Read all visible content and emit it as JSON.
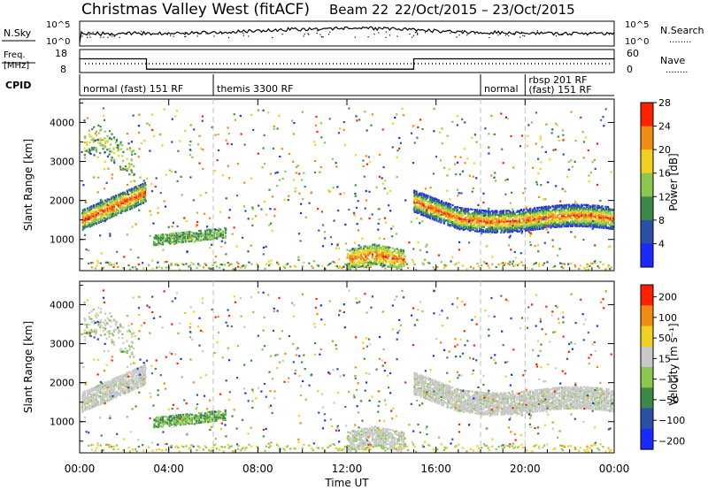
{
  "title": {
    "main": "Christmas Valley West (fitACF)",
    "beam": "Beam 22",
    "date_range": "22/Oct/2015 – 23/Oct/2015"
  },
  "noise_panel": {
    "left_label": "N.Sky",
    "right_label": "N.Search",
    "right_legend": "........",
    "left_ticks": [
      "10^5",
      "10^0"
    ],
    "right_ticks": [
      "10^5",
      "10^0"
    ]
  },
  "freq_panel": {
    "left_label_1": "Freq.",
    "left_label_2": "[MHz]",
    "left_ticks": [
      "18",
      "8"
    ],
    "right_ticks": [
      "60",
      "0"
    ],
    "right_label": "Nave",
    "right_legend": "........",
    "freq_steps": [
      {
        "t": 0.0,
        "mhz": 15.5
      },
      {
        "t": 3.0,
        "mhz": 11.0
      },
      {
        "t": 15.0,
        "mhz": 15.5
      },
      {
        "t": 24.0,
        "mhz": 15.5
      }
    ]
  },
  "cpid": {
    "label": "CPID",
    "segments": [
      {
        "start": 0.0,
        "end": 6.0,
        "label": "normal (fast) 151 RF"
      },
      {
        "start": 6.0,
        "end": 18.0,
        "label": "themis 3300 RF"
      },
      {
        "start": 18.0,
        "end": 20.0,
        "label": "normal"
      },
      {
        "start": 20.0,
        "end": 24.0,
        "label": "rbsp 201 RF",
        "label2": "(fast) 151 RF"
      }
    ]
  },
  "chart_data": [
    {
      "type": "heatmap",
      "name": "power",
      "ylabel": "Slant Range [km]",
      "yticks": [
        "1000",
        "2000",
        "3000",
        "4000"
      ],
      "ylim": [
        200,
        4600
      ],
      "xlim": [
        0,
        24
      ],
      "colorbar_label": "Power [dB]",
      "colorbar_ticks": [
        "4",
        "8",
        "12",
        "16",
        "20",
        "24",
        "28"
      ],
      "colors": [
        "#1a2aff",
        "#2c4fa8",
        "#3c8a4a",
        "#8cc850",
        "#f0d020",
        "#f08a10",
        "#ff2000"
      ]
    },
    {
      "type": "heatmap",
      "name": "velocity",
      "ylabel": "Slant Range [km]",
      "yticks": [
        "1000",
        "2000",
        "3000",
        "4000"
      ],
      "ylim": [
        200,
        4600
      ],
      "xlim": [
        0,
        24
      ],
      "colorbar_label": "Velocity [m s⁻¹]",
      "colorbar_ticks": [
        "200",
        "100",
        "50",
        "15",
        "−15",
        "−50",
        "−100",
        "−200"
      ],
      "colors": [
        "#1a2aff",
        "#2c4fa8",
        "#3c8a4a",
        "#8cc850",
        "#c8c8c8",
        "#f0d020",
        "#f08a10",
        "#ff2000"
      ]
    }
  ],
  "xaxis": {
    "label": "Time UT",
    "ticks": [
      "00:00",
      "04:00",
      "08:00",
      "12:00",
      "16:00",
      "20:00",
      "00:00"
    ]
  },
  "colors": {
    "dashed_grid": "#c0c0c0"
  }
}
